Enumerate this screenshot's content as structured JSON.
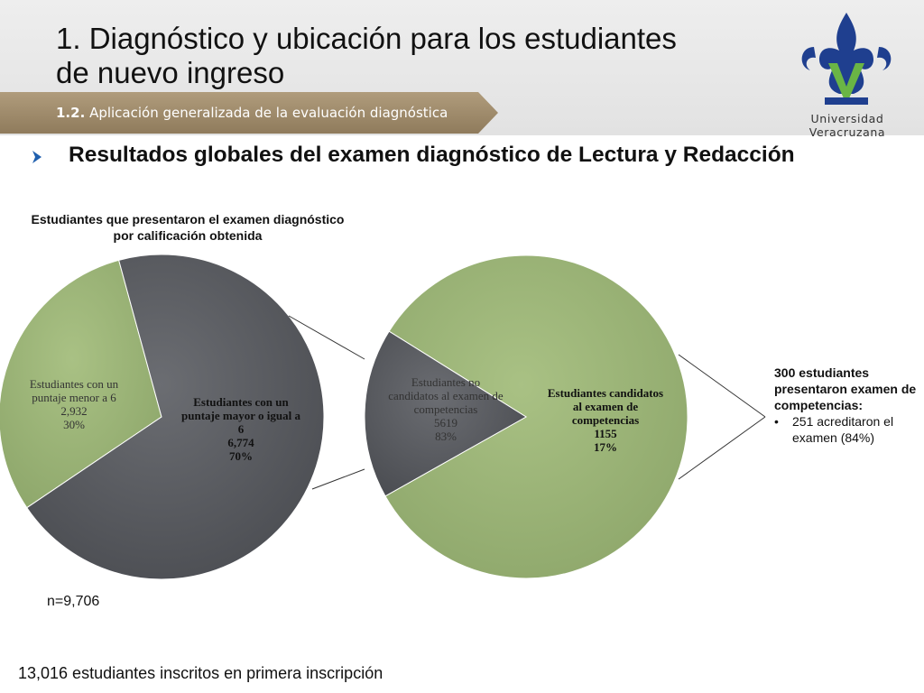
{
  "header": {
    "title_line1": "1. Diagnóstico y ubicación para los estudiantes",
    "title_line2": "de nuevo ingreso",
    "subtitle_number": "1.2.",
    "subtitle_text": "Aplicación generalizada de la evaluación diagnóstica",
    "logo_text": "Universidad Veracruzana"
  },
  "section": {
    "title": "Resultados globales del examen diagnóstico de Lectura y Redacción"
  },
  "chart_data": [
    {
      "type": "pie",
      "title": "Estudiantes que presentaron el examen diagnóstico por calificación obtenida",
      "slices": [
        {
          "label": "Estudiantes con un puntaje menor a 6",
          "value": 2932,
          "value_text": "2,932",
          "percent_text": "30%",
          "color": "#9fb77a"
        },
        {
          "label": "Estudiantes con un puntaje mayor o igual a 6",
          "value": 6774,
          "value_text": "6,774",
          "percent_text": "70%",
          "color": "#5c5e63"
        }
      ]
    },
    {
      "type": "pie",
      "title": "",
      "slices": [
        {
          "label": "Estudiantes no candidatos al examen de competencias",
          "value": 5619,
          "value_text": "5619",
          "percent_text": "83%",
          "color": "#9fb77a"
        },
        {
          "label": "Estudiantes candidatos al examen de competencias",
          "value": 1155,
          "value_text": "1155",
          "percent_text": "17%",
          "color": "#5c5e63"
        }
      ]
    }
  ],
  "note": {
    "head": "300 estudiantes presentaron examen de competencias:",
    "bullet": "251 acreditaron el examen (84%)"
  },
  "n_label": "n=9,706",
  "footer": "13,016 estudiantes inscritos en primera inscripción",
  "colors": {
    "green": "#9fb77a",
    "gray": "#5c5e63",
    "bar": "#9c8766",
    "logo_blue": "#1f3f8f",
    "logo_green": "#6ab545"
  }
}
